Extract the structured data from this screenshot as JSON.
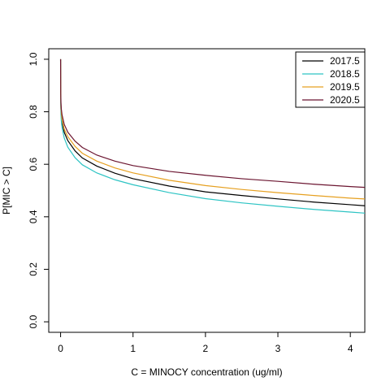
{
  "chart_data": {
    "type": "line",
    "title": "",
    "xlabel": "C = MINOCY concentration (ug/ml)",
    "ylabel": "P[MIC > C]",
    "xlim": [
      -0.1636,
      4.2
    ],
    "ylim": [
      -0.04,
      1.04
    ],
    "x_ticks": [
      0,
      1,
      2,
      3,
      4
    ],
    "x_tick_labels": [
      "0",
      "1",
      "2",
      "3",
      "4"
    ],
    "y_ticks": [
      0.0,
      0.2,
      0.4,
      0.6,
      0.8,
      1.0
    ],
    "y_tick_labels": [
      "0.0",
      "0.2",
      "0.4",
      "0.6",
      "0.8",
      "1.0"
    ],
    "grid": false,
    "legend_position": "top-right",
    "x": [
      0,
      0.002,
      0.005,
      0.01,
      0.02,
      0.05,
      0.1,
      0.2,
      0.3,
      0.5,
      0.75,
      1.0,
      1.5,
      2.0,
      2.5,
      3.0,
      3.5,
      4.0,
      4.2
    ],
    "series": [
      {
        "name": "2017.5",
        "color": "#000000",
        "values": [
          1.0,
          0.85,
          0.81,
          0.785,
          0.76,
          0.722,
          0.69,
          0.651,
          0.624,
          0.593,
          0.566,
          0.545,
          0.517,
          0.495,
          0.481,
          0.468,
          0.456,
          0.446,
          0.442
        ]
      },
      {
        "name": "2018.5",
        "color": "#2EC4C4",
        "values": [
          1.0,
          0.83,
          0.79,
          0.765,
          0.74,
          0.7,
          0.665,
          0.625,
          0.598,
          0.567,
          0.541,
          0.522,
          0.492,
          0.469,
          0.453,
          0.44,
          0.428,
          0.418,
          0.414
        ]
      },
      {
        "name": "2019.5",
        "color": "#E6A020",
        "values": [
          1.0,
          0.86,
          0.82,
          0.795,
          0.77,
          0.734,
          0.705,
          0.668,
          0.642,
          0.612,
          0.586,
          0.567,
          0.539,
          0.519,
          0.504,
          0.492,
          0.481,
          0.471,
          0.468
        ]
      },
      {
        "name": "2020.5",
        "color": "#6B1530",
        "values": [
          1.0,
          0.87,
          0.835,
          0.81,
          0.788,
          0.752,
          0.722,
          0.688,
          0.664,
          0.635,
          0.612,
          0.595,
          0.573,
          0.558,
          0.545,
          0.535,
          0.524,
          0.515,
          0.512
        ]
      }
    ]
  }
}
